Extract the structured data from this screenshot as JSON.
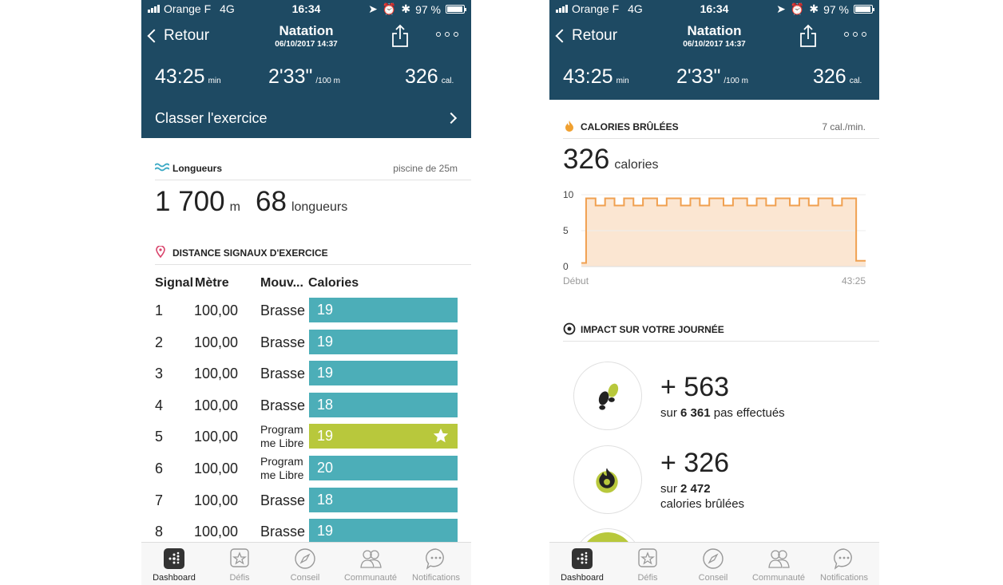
{
  "status": {
    "carrier": "Orange F",
    "network": "4G",
    "time": "16:34",
    "battery": "97 %",
    "battery_level": 0.97
  },
  "nav": {
    "back": "Retour",
    "title": "Natation",
    "date": "06/10/2017 14:37"
  },
  "stats": {
    "duration": "43:25",
    "duration_unit": "min",
    "pace": "2'33\"",
    "pace_unit": "/100 m",
    "calories": "326",
    "calories_unit": "cal."
  },
  "classer": "Classer l'exercice",
  "lengths": {
    "header": "Longueurs",
    "pool": "piscine de 25m",
    "distance": "1 700",
    "distance_unit": "m",
    "count": "68",
    "count_unit": "longueurs"
  },
  "splits": {
    "header": "DISTANCE SIGNAUX D'EXERCICE",
    "columns": [
      "Signal",
      "Mètre",
      "Mouv...",
      "Calories"
    ],
    "rows": [
      {
        "signal": "1",
        "meters": "100,00",
        "stroke": "Brasse",
        "calories": "19",
        "best": false
      },
      {
        "signal": "2",
        "meters": "100,00",
        "stroke": "Brasse",
        "calories": "19",
        "best": false
      },
      {
        "signal": "3",
        "meters": "100,00",
        "stroke": "Brasse",
        "calories": "19",
        "best": false
      },
      {
        "signal": "4",
        "meters": "100,00",
        "stroke": "Brasse",
        "calories": "18",
        "best": false
      },
      {
        "signal": "5",
        "meters": "100,00",
        "stroke_l1": "Program",
        "stroke_l2": "me Libre",
        "calories": "19",
        "best": true
      },
      {
        "signal": "6",
        "meters": "100,00",
        "stroke_l1": "Program",
        "stroke_l2": "me Libre",
        "calories": "20",
        "best": false
      },
      {
        "signal": "7",
        "meters": "100,00",
        "stroke": "Brasse",
        "calories": "18",
        "best": false
      },
      {
        "signal": "8",
        "meters": "100,00",
        "stroke": "Brasse",
        "calories": "19",
        "best": false
      }
    ]
  },
  "calories_section": {
    "header": "CALORIES BRÛLÉES",
    "rate": "7 cal./min.",
    "value": "326",
    "unit": "calories"
  },
  "chart_data": {
    "type": "line",
    "title": "",
    "xlabel": "",
    "ylabel": "",
    "x_labels": [
      "Début",
      "43:25"
    ],
    "y_ticks": [
      "10",
      "5",
      "0"
    ],
    "ylim": [
      0,
      10
    ],
    "grid": true,
    "series": [
      {
        "values": [
          0.5,
          9.5,
          9.5,
          8.5,
          8.5,
          9.5,
          9.5,
          8.5,
          8.5,
          9.5,
          9.5,
          8.5,
          8.5,
          9.5,
          9.5,
          9.5,
          8.5,
          8.5,
          9.5,
          9.5,
          9.5,
          8.5,
          8.5,
          9.5,
          9.5,
          8.5,
          8.5,
          9.5,
          9.5,
          9.5,
          8.5,
          8.5,
          9.5,
          9.5,
          9.5,
          8.5,
          8.5,
          9.5,
          9.5,
          8.5,
          8.5,
          9.5,
          9.5,
          9.5,
          8.5,
          8.5,
          9.5,
          9.5,
          8.5,
          8.5,
          9.5,
          9.5,
          9.5,
          8.5,
          8.5,
          9.5,
          9.5,
          9.5,
          0.8,
          0.8,
          0.8
        ]
      }
    ],
    "color": "#f0a050"
  },
  "impact": {
    "header": "IMPACT SUR VOTRE JOURNÉE",
    "steps_value": "+ 563",
    "steps_prefix": "sur",
    "steps_total": "6 361",
    "steps_suffix": "pas effectués",
    "cal_value": "+ 326",
    "cal_prefix": "sur",
    "cal_total": "2 472",
    "cal_suffix": "calories brûlées"
  },
  "tabs": [
    "Dashboard",
    "Défis",
    "Conseil",
    "Communauté",
    "Notifications"
  ],
  "colors": {
    "header": "#1e4a63",
    "bar_teal": "#4caeb8",
    "bar_green": "#b8c83c",
    "chart": "#f0a050"
  }
}
